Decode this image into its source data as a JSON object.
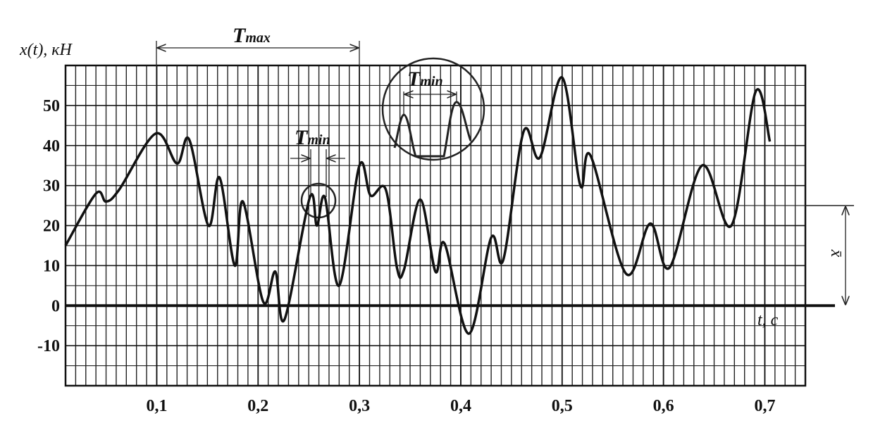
{
  "chart_data": {
    "type": "line",
    "xlabel": "t, c",
    "ylabel": "x(t), кН",
    "x": [
      0.01,
      0.04,
      0.05,
      0.063,
      0.099,
      0.12,
      0.132,
      0.151,
      0.162,
      0.177,
      0.185,
      0.205,
      0.217,
      0.226,
      0.251,
      0.258,
      0.266,
      0.28,
      0.3,
      0.311,
      0.326,
      0.337,
      0.344,
      0.36,
      0.375,
      0.384,
      0.408,
      0.43,
      0.442,
      0.462,
      0.478,
      0.5,
      0.518,
      0.528,
      0.563,
      0.587,
      0.606,
      0.638,
      0.667,
      0.691,
      0.705
    ],
    "series": [
      {
        "color": "#111111",
        "values": [
          15,
          28,
          26,
          29,
          43,
          35.5,
          41.5,
          20,
          32,
          10,
          26,
          1,
          8.5,
          -3.5,
          27,
          20,
          27,
          5,
          35,
          27.5,
          29,
          9.5,
          9,
          26.5,
          8.5,
          15.5,
          -7,
          17,
          11.5,
          43.5,
          37,
          57,
          30,
          37.5,
          8,
          20.5,
          9.5,
          35,
          20,
          53.5,
          41
        ]
      }
    ],
    "xlim": [
      0.01,
      0.74
    ],
    "ylim": [
      -20,
      60
    ],
    "xticks": [
      {
        "value": 0.1,
        "label": "0,1"
      },
      {
        "value": 0.2,
        "label": "0,2"
      },
      {
        "value": 0.3,
        "label": "0,3"
      },
      {
        "value": 0.4,
        "label": "0,4"
      },
      {
        "value": 0.5,
        "label": "0,5"
      },
      {
        "value": 0.6,
        "label": "0,6"
      },
      {
        "value": 0.7,
        "label": "0,7"
      }
    ],
    "yticks": [
      -10,
      0,
      10,
      20,
      30,
      40,
      50
    ],
    "grid": true,
    "mean_value": 25,
    "mean_label": "x̄",
    "annotations": [
      {
        "base": "T",
        "sub": "max"
      },
      {
        "base": "T",
        "sub": "min"
      },
      {
        "base": "T",
        "sub": "min"
      }
    ]
  }
}
